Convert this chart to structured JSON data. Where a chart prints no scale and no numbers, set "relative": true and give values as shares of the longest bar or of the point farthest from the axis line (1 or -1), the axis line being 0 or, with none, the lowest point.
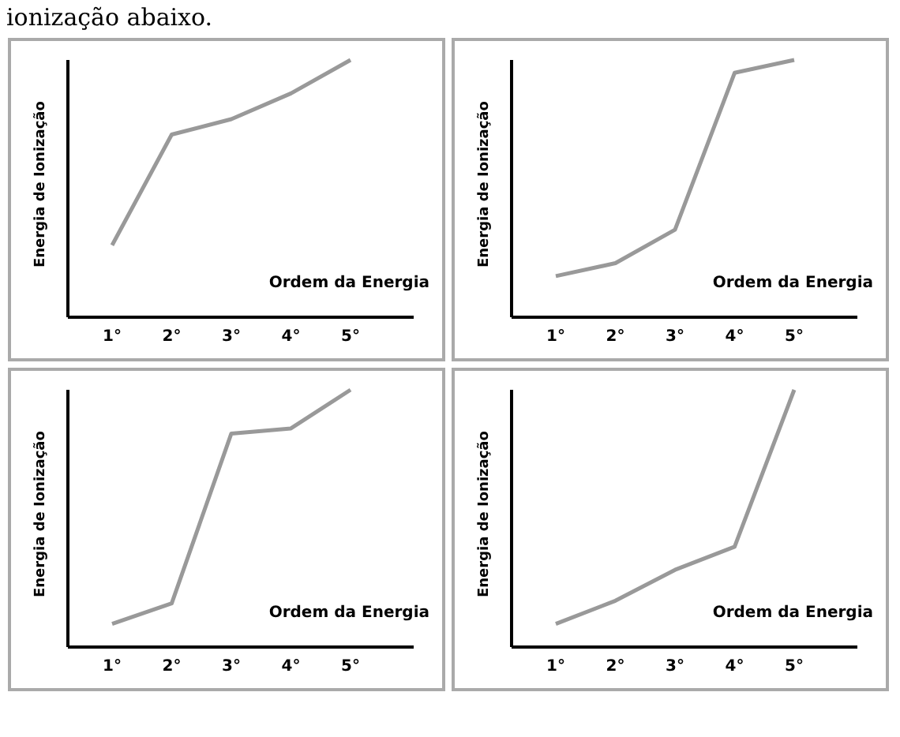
{
  "chart_data": [
    {
      "type": "line",
      "title": "ionização abaixo.",
      "categories": [
        "1°",
        "2°",
        "3°",
        "4°",
        "5°"
      ],
      "xlabel": "Ordem da Energia",
      "ylabel": "Energia de Ionização",
      "relative": true,
      "grid": false,
      "legend": false,
      "marker": "none",
      "line_style": "solid",
      "series": [
        {
          "color": "#999999",
          "values": [
            0.28,
            0.71,
            0.77,
            0.87,
            1
          ]
        }
      ]
    },
    {
      "type": "line",
      "categories": [
        "1°",
        "2°",
        "3°",
        "4°",
        "5°"
      ],
      "xlabel": "Ordem da Energia",
      "ylabel": "Energia de Ionização",
      "relative": true,
      "grid": false,
      "legend": false,
      "marker": "none",
      "line_style": "solid",
      "series": [
        {
          "color": "#999999",
          "values": [
            0.16,
            0.21,
            0.34,
            0.95,
            1
          ]
        }
      ]
    },
    {
      "type": "line",
      "categories": [
        "1°",
        "2°",
        "3°",
        "4°",
        "5°"
      ],
      "xlabel": "Ordem da Energia",
      "ylabel": "Energia de Ionização",
      "relative": true,
      "grid": false,
      "legend": false,
      "marker": "none",
      "line_style": "solid",
      "series": [
        {
          "color": "#999999",
          "values": [
            0.09,
            0.17,
            0.83,
            0.85,
            1
          ]
        }
      ]
    },
    {
      "type": "line",
      "categories": [
        "1°",
        "2°",
        "3°",
        "4°",
        "5°"
      ],
      "xlabel": "Ordem da Energia",
      "ylabel": "Energia de Ionização",
      "relative": true,
      "grid": false,
      "legend": false,
      "marker": "none",
      "line_style": "solid",
      "series": [
        {
          "color": "#999999",
          "values": [
            0.09,
            0.18,
            0.3,
            0.39,
            1
          ]
        }
      ]
    }
  ]
}
